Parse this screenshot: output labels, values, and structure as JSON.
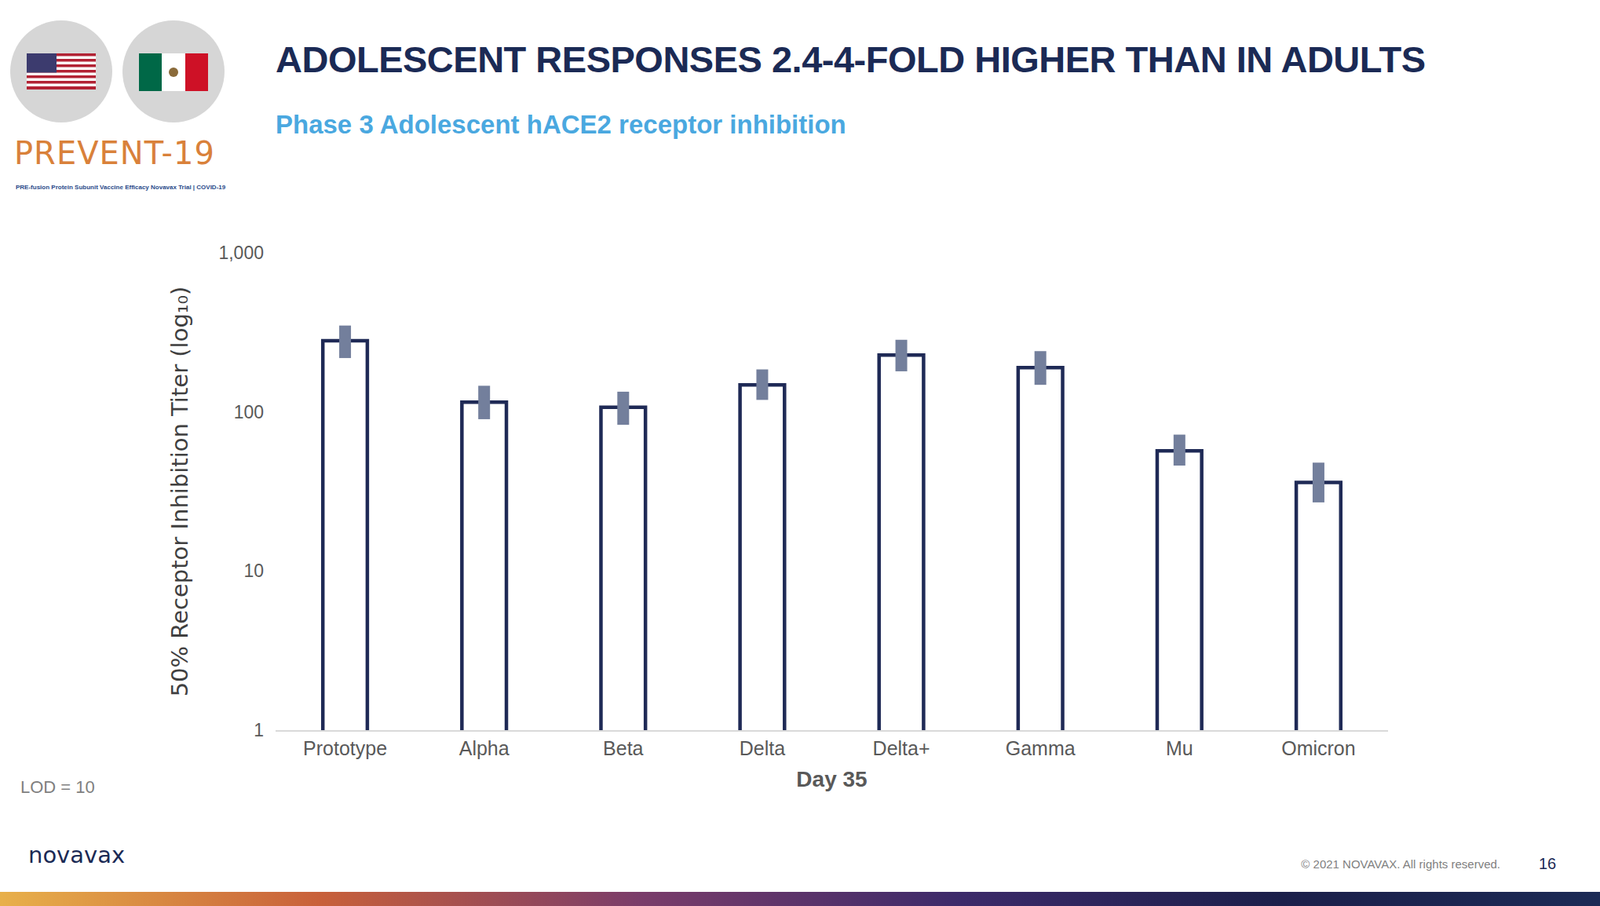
{
  "chart_data": {
    "type": "bar",
    "title": "ADOLESCENT RESPONSES 2.4-4-FOLD HIGHER THAN IN ADULTS",
    "subtitle": "Phase 3 Adolescent hACE2 receptor inhibition",
    "x_label": "Day 35",
    "y_label": "50% Receptor Inhibition Titer (log₁₀)",
    "categories": [
      "Prototype",
      "Alpha",
      "Beta",
      "Delta",
      "Delta+",
      "Gamma",
      "Mu",
      "Omicron"
    ],
    "values": [
      280,
      115,
      107,
      148,
      228,
      190,
      57,
      36
    ],
    "ci_lower": [
      218,
      90,
      83,
      119,
      180,
      148,
      46,
      27
    ],
    "ci_upper": [
      349,
      146,
      134,
      185,
      284,
      241,
      72,
      48
    ],
    "color": "#1f2a56",
    "log": "y",
    "ylim": [
      1,
      1000
    ],
    "yticks": [
      1,
      10,
      100,
      {
        "value": 1000,
        "label": "1,000"
      }
    ],
    "grid": false,
    "data_labels": false,
    "annotations": [
      "LOD = 10"
    ]
  },
  "page": {
    "logo": "PREVENT-19",
    "logo_caption": "PRE-fusion Protein Subunit Vaccine Efficacy Novavax Trial | COVID-19",
    "brand": "novavax",
    "copyright": "© 2021 NOVAVAX. All rights reserved.",
    "page_number": "16"
  }
}
